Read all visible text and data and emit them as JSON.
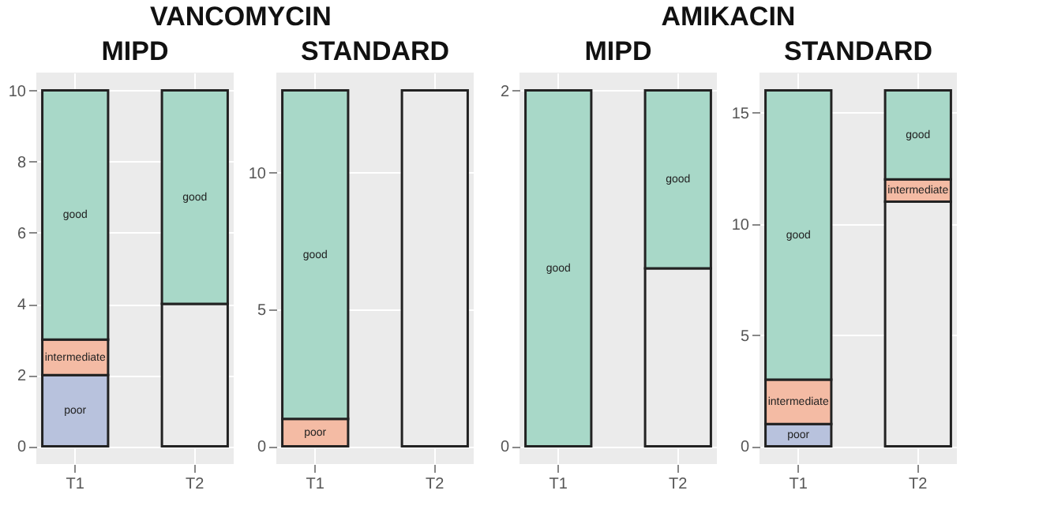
{
  "chart_data": [
    {
      "type": "bar",
      "title": "VANCOMYCIN",
      "subtitle": "MIPD",
      "categories": [
        "T1",
        "T2"
      ],
      "stacked": true,
      "grid": true,
      "ylim": [
        -0.5,
        10.5
      ],
      "yticks": [
        0,
        2,
        4,
        6,
        8,
        10
      ],
      "series": [
        {
          "name": null,
          "color": "#ebebeb",
          "values": [
            null,
            4
          ]
        },
        {
          "name": "poor",
          "color": "#b8c2dd",
          "values": [
            2,
            null
          ]
        },
        {
          "name": "intermediate",
          "color": "#f4bba4",
          "values": [
            1,
            null
          ]
        },
        {
          "name": "good",
          "color": "#a8d8c8",
          "values": [
            7,
            6
          ]
        }
      ]
    },
    {
      "type": "bar",
      "subtitle": "STANDARD",
      "categories": [
        "T1",
        "T2"
      ],
      "stacked": true,
      "grid": true,
      "ylim": [
        -0.65,
        13.65
      ],
      "yticks": [
        0,
        5,
        10
      ],
      "series": [
        {
          "name": null,
          "color": "#ebebeb",
          "values": [
            null,
            13
          ]
        },
        {
          "name": "poor",
          "color": "#f4bba4",
          "values": [
            1,
            null
          ]
        },
        {
          "name": "good",
          "color": "#a8d8c8",
          "values": [
            12,
            null
          ]
        }
      ]
    },
    {
      "type": "bar",
      "title": "AMIKACIN",
      "subtitle": "MIPD",
      "categories": [
        "T1",
        "T2"
      ],
      "stacked": true,
      "grid": true,
      "ylim": [
        -0.1,
        2.1
      ],
      "yticks": [
        0,
        2
      ],
      "series": [
        {
          "name": null,
          "color": "#ebebeb",
          "values": [
            null,
            1
          ]
        },
        {
          "name": "good",
          "color": "#a8d8c8",
          "values": [
            2,
            1
          ]
        }
      ]
    },
    {
      "type": "bar",
      "subtitle": "STANDARD",
      "categories": [
        "T1",
        "T2"
      ],
      "stacked": true,
      "grid": true,
      "ylim": [
        -0.8,
        16.8
      ],
      "yticks": [
        0,
        5,
        10,
        15
      ],
      "series": [
        {
          "name": null,
          "color": "#ebebeb",
          "values": [
            null,
            11
          ]
        },
        {
          "name": "poor",
          "color": "#b8c2dd",
          "values": [
            1,
            null
          ]
        },
        {
          "name": "intermediate",
          "color": "#f4bba4",
          "values": [
            2,
            1
          ]
        },
        {
          "name": "good",
          "color": "#a8d8c8",
          "values": [
            13,
            4
          ]
        }
      ]
    }
  ]
}
